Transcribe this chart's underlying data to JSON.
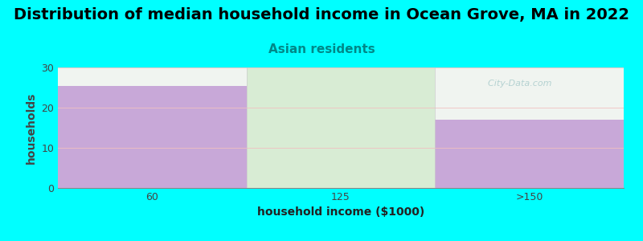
{
  "title": "Distribution of median household income in Ocean Grove, MA in 2022",
  "subtitle": "Asian residents",
  "xlabel": "household income ($1000)",
  "ylabel": "households",
  "categories": [
    "60",
    "125",
    ">150"
  ],
  "values": [
    25.5,
    0,
    17
  ],
  "bar_color": "#c8a8d8",
  "bar_color_middle": "#d8ecd4",
  "ylim": [
    0,
    30
  ],
  "yticks": [
    0,
    10,
    20,
    30
  ],
  "background_color": "#00FFFF",
  "plot_bg_top": "#e8f0e8",
  "plot_bg_bottom": "#ffffff",
  "title_fontsize": 14,
  "subtitle_fontsize": 11,
  "subtitle_color": "#008888",
  "axis_label_fontsize": 10,
  "tick_fontsize": 9,
  "watermark": "  City-Data.com"
}
